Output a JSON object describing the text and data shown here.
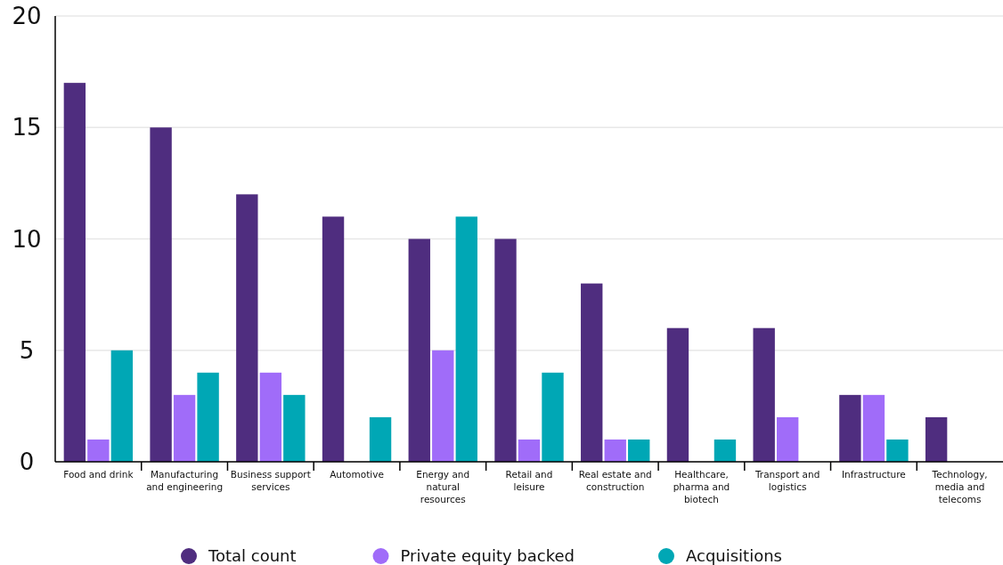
{
  "chart_data": {
    "type": "bar",
    "categories": [
      "Food and drink",
      "Manufacturing and engineering",
      "Business support services",
      "Automotive",
      "Energy and natural resources",
      "Retail and leisure",
      "Real estate and construction",
      "Healthcare, pharma and biotech",
      "Transport and logistics",
      "Infrastructure",
      "Technology, media and telecoms"
    ],
    "series": [
      {
        "name": "Total count",
        "color": "#4f2d7f",
        "values": [
          17,
          15,
          12,
          11,
          10,
          10,
          8,
          6,
          6,
          3,
          2
        ]
      },
      {
        "name": "Private equity backed",
        "color": "#a06cf9",
        "values": [
          1,
          3,
          4,
          0,
          5,
          1,
          1,
          0,
          2,
          3,
          0
        ]
      },
      {
        "name": "Acquisitions",
        "color": "#00a7b5",
        "values": [
          5,
          4,
          3,
          2,
          11,
          4,
          1,
          1,
          0,
          1,
          0
        ]
      }
    ],
    "ylim": [
      0,
      20
    ],
    "yticks": [
      0,
      5,
      10,
      15,
      20
    ],
    "grid": "y",
    "legend": "bottom"
  }
}
